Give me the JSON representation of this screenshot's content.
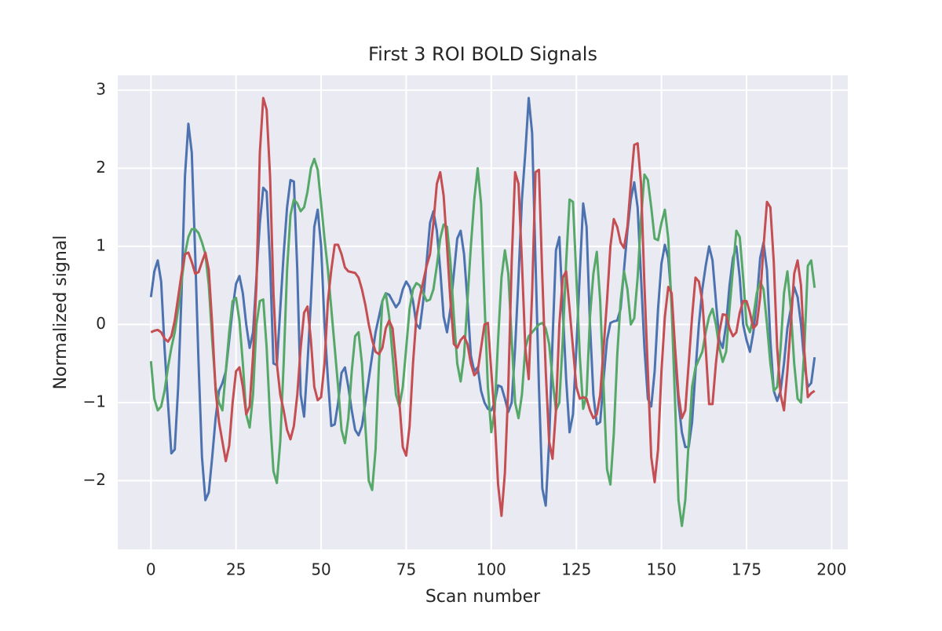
{
  "chart_data": {
    "type": "line",
    "title": "First 3 ROI BOLD Signals",
    "x_label": "Scan number",
    "y_label": "Normalized signal",
    "x": [
      0,
      1,
      2,
      3,
      4,
      5,
      6,
      7,
      8,
      9,
      10,
      11,
      12,
      13,
      14,
      15,
      16,
      17,
      18,
      19,
      20,
      21,
      22,
      23,
      24,
      25,
      26,
      27,
      28,
      29,
      30,
      31,
      32,
      33,
      34,
      35,
      36,
      37,
      38,
      39,
      40,
      41,
      42,
      43,
      44,
      45,
      46,
      47,
      48,
      49,
      50,
      51,
      52,
      53,
      54,
      55,
      56,
      57,
      58,
      59,
      60,
      61,
      62,
      63,
      64,
      65,
      66,
      67,
      68,
      69,
      70,
      71,
      72,
      73,
      74,
      75,
      76,
      77,
      78,
      79,
      80,
      81,
      82,
      83,
      84,
      85,
      86,
      87,
      88,
      89,
      90,
      91,
      92,
      93,
      94,
      95,
      96,
      97,
      98,
      99,
      100,
      101,
      102,
      103,
      104,
      105,
      106,
      107,
      108,
      109,
      110,
      111,
      112,
      113,
      114,
      115,
      116,
      117,
      118,
      119,
      120,
      121,
      122,
      123,
      124,
      125,
      126,
      127,
      128,
      129,
      130,
      131,
      132,
      133,
      134,
      135,
      136,
      137,
      138,
      139,
      140,
      141,
      142,
      143,
      144,
      145,
      146,
      147,
      148,
      149,
      150,
      151,
      152,
      153,
      154,
      155,
      156,
      157,
      158,
      159,
      160,
      161,
      162,
      163,
      164,
      165,
      166,
      167,
      168,
      169,
      170,
      171,
      172,
      173,
      174,
      175,
      176,
      177,
      178,
      179,
      180,
      181,
      182,
      183,
      184,
      185,
      186,
      187,
      188,
      189,
      190,
      191,
      192,
      193,
      194,
      195
    ],
    "series": [
      {
        "color": "#4c72b0",
        "values": [
          0.35,
          0.68,
          0.82,
          0.55,
          -0.3,
          -1.0,
          -1.65,
          -1.6,
          -0.8,
          0.4,
          1.9,
          2.57,
          2.2,
          0.9,
          -0.5,
          -1.7,
          -2.25,
          -2.15,
          -1.7,
          -1.2,
          -0.85,
          -0.75,
          -0.6,
          -0.2,
          0.2,
          0.52,
          0.62,
          0.4,
          0.0,
          -0.3,
          -0.1,
          0.6,
          1.3,
          1.75,
          1.7,
          0.8,
          -0.5,
          -0.52,
          0.2,
          0.9,
          1.5,
          1.85,
          1.83,
          0.7,
          -0.9,
          -1.18,
          -0.5,
          0.3,
          1.25,
          1.47,
          1.0,
          0.0,
          -0.7,
          -1.3,
          -1.28,
          -1.0,
          -0.62,
          -0.55,
          -0.8,
          -1.1,
          -1.35,
          -1.42,
          -1.3,
          -1.0,
          -0.7,
          -0.4,
          -0.1,
          0.1,
          0.3,
          0.4,
          0.38,
          0.3,
          0.22,
          0.28,
          0.45,
          0.55,
          0.48,
          0.3,
          0.0,
          -0.05,
          0.3,
          0.8,
          1.3,
          1.45,
          1.2,
          0.7,
          0.1,
          -0.1,
          0.2,
          0.65,
          1.1,
          1.2,
          0.9,
          0.3,
          -0.4,
          -0.6,
          -0.55,
          -0.85,
          -1.0,
          -1.08,
          -1.1,
          -1.0,
          -0.78,
          -0.8,
          -0.95,
          -1.12,
          -1.0,
          -0.3,
          0.6,
          1.6,
          2.2,
          2.9,
          2.45,
          0.8,
          -0.8,
          -2.1,
          -2.32,
          -1.5,
          -0.2,
          0.95,
          1.12,
          0.2,
          -0.7,
          -1.38,
          -1.15,
          -0.3,
          0.65,
          1.55,
          1.25,
          0.0,
          -0.9,
          -1.28,
          -1.25,
          -0.7,
          -0.2,
          0.02,
          0.04,
          0.05,
          0.2,
          0.7,
          1.2,
          1.6,
          1.82,
          1.5,
          0.6,
          -0.3,
          -0.95,
          -1.05,
          -0.6,
          0.2,
          0.78,
          1.02,
          0.85,
          0.3,
          -0.4,
          -1.0,
          -1.38,
          -1.57,
          -1.57,
          -1.25,
          -0.6,
          0.0,
          0.45,
          0.75,
          1.0,
          0.82,
          0.3,
          -0.2,
          -0.3,
          0.0,
          0.5,
          0.85,
          1.0,
          0.6,
          0.0,
          -0.2,
          -0.35,
          -0.1,
          0.3,
          0.85,
          1.05,
          0.7,
          -0.2,
          -0.85,
          -0.98,
          -0.85,
          -0.5,
          -0.05,
          0.2,
          0.48,
          0.35,
          0.0,
          -0.5,
          -0.8,
          -0.75,
          -0.42
        ]
      },
      {
        "color": "#55a868",
        "values": [
          -0.47,
          -0.95,
          -1.1,
          -1.05,
          -0.85,
          -0.55,
          -0.3,
          -0.1,
          0.2,
          0.55,
          0.9,
          1.12,
          1.22,
          1.22,
          1.17,
          1.05,
          0.9,
          0.5,
          -0.2,
          -0.8,
          -1.0,
          -1.1,
          -0.6,
          -0.1,
          0.3,
          0.34,
          0.05,
          -0.5,
          -1.15,
          -1.32,
          -0.9,
          0.0,
          0.3,
          0.32,
          -0.3,
          -1.2,
          -1.88,
          -2.03,
          -1.5,
          -0.5,
          0.7,
          1.4,
          1.6,
          1.55,
          1.45,
          1.5,
          1.7,
          2.0,
          2.12,
          1.98,
          1.55,
          1.1,
          0.7,
          0.2,
          -0.3,
          -0.8,
          -1.35,
          -1.52,
          -1.2,
          -0.6,
          -0.15,
          -0.1,
          -0.5,
          -1.3,
          -2.0,
          -2.12,
          -1.6,
          -0.5,
          0.3,
          0.4,
          0.1,
          -0.4,
          -0.9,
          -1.05,
          -0.8,
          -0.3,
          0.2,
          0.45,
          0.53,
          0.5,
          0.4,
          0.3,
          0.32,
          0.45,
          0.75,
          1.1,
          1.28,
          1.25,
          0.8,
          0.1,
          -0.5,
          -0.73,
          -0.4,
          0.3,
          1.0,
          1.6,
          2.0,
          1.55,
          0.3,
          -0.8,
          -1.38,
          -1.1,
          -0.2,
          0.6,
          0.95,
          0.65,
          -0.2,
          -1.0,
          -1.2,
          -0.9,
          -0.3,
          -0.15,
          -0.1,
          -0.05,
          0.0,
          0.02,
          -0.05,
          -0.25,
          -0.7,
          -1.1,
          -1.0,
          -0.2,
          0.8,
          1.6,
          1.57,
          0.6,
          -0.4,
          -1.08,
          -0.9,
          0.1,
          0.65,
          0.93,
          0.3,
          -0.8,
          -1.85,
          -2.05,
          -1.4,
          -0.4,
          0.3,
          0.68,
          0.45,
          0.0,
          0.08,
          0.6,
          1.35,
          1.92,
          1.85,
          1.5,
          1.1,
          1.08,
          1.3,
          1.47,
          1.1,
          0.2,
          -1.0,
          -2.25,
          -2.58,
          -2.25,
          -1.5,
          -0.8,
          -0.55,
          -0.45,
          -0.35,
          -0.1,
          0.1,
          0.2,
          0.0,
          -0.3,
          -0.48,
          -0.35,
          0.2,
          0.7,
          1.2,
          1.12,
          0.6,
          0.0,
          -0.1,
          0.1,
          0.4,
          0.55,
          0.45,
          0.0,
          -0.5,
          -0.85,
          -0.8,
          -0.3,
          0.4,
          0.68,
          0.2,
          -0.5,
          -0.95,
          -1.0,
          -0.3,
          0.75,
          0.82,
          0.47
        ]
      },
      {
        "color": "#c44e52",
        "values": [
          -0.1,
          -0.08,
          -0.07,
          -0.1,
          -0.18,
          -0.22,
          -0.15,
          0.05,
          0.35,
          0.65,
          0.9,
          0.92,
          0.8,
          0.65,
          0.67,
          0.8,
          0.92,
          0.7,
          0.0,
          -0.85,
          -1.25,
          -1.5,
          -1.75,
          -1.55,
          -1.0,
          -0.6,
          -0.55,
          -0.8,
          -1.15,
          -1.05,
          -0.4,
          0.5,
          2.2,
          2.9,
          2.75,
          1.9,
          0.4,
          -0.5,
          -0.9,
          -1.1,
          -1.35,
          -1.47,
          -1.3,
          -0.9,
          -0.3,
          0.15,
          0.23,
          -0.2,
          -0.8,
          -0.97,
          -0.93,
          -0.5,
          0.3,
          0.7,
          1.02,
          1.02,
          0.9,
          0.73,
          0.68,
          0.67,
          0.66,
          0.6,
          0.45,
          0.25,
          0.0,
          -0.2,
          -0.35,
          -0.38,
          -0.3,
          -0.05,
          0.05,
          -0.05,
          -0.5,
          -1.0,
          -1.57,
          -1.68,
          -1.3,
          -0.5,
          0.1,
          0.35,
          0.55,
          0.75,
          0.9,
          1.3,
          1.8,
          1.95,
          1.65,
          1.0,
          0.3,
          -0.25,
          -0.3,
          -0.2,
          -0.15,
          -0.25,
          -0.5,
          -0.65,
          -0.6,
          -0.3,
          0.0,
          0.02,
          -0.6,
          -1.2,
          -2.05,
          -2.45,
          -1.9,
          -0.8,
          0.8,
          1.95,
          1.8,
          0.8,
          -0.3,
          -0.7,
          0.4,
          1.95,
          1.98,
          0.6,
          -0.6,
          -1.5,
          -1.72,
          -1.1,
          0.0,
          0.6,
          0.68,
          0.2,
          -0.3,
          -0.8,
          -0.95,
          -0.93,
          -0.95,
          -1.1,
          -1.2,
          -1.15,
          -0.9,
          -0.3,
          0.3,
          1.0,
          1.35,
          1.25,
          1.05,
          0.98,
          1.25,
          1.8,
          2.3,
          2.32,
          1.8,
          0.5,
          -0.6,
          -1.7,
          -2.02,
          -1.6,
          -0.6,
          0.1,
          0.48,
          0.4,
          -0.3,
          -0.9,
          -1.2,
          -1.1,
          -0.5,
          0.1,
          0.6,
          0.55,
          0.3,
          -0.3,
          -1.02,
          -1.02,
          -0.5,
          -0.1,
          0.13,
          0.12,
          -0.05,
          -0.15,
          -0.1,
          0.15,
          0.3,
          0.3,
          0.15,
          -0.05,
          0.0,
          0.35,
          1.0,
          1.57,
          1.5,
          0.8,
          -0.3,
          -0.9,
          -1.1,
          -0.6,
          0.0,
          0.65,
          0.82,
          0.5,
          -0.35,
          -0.93,
          -0.88,
          -0.85
        ]
      }
    ],
    "xlim": [
      -9.75,
      204.75
    ],
    "ylim": [
      -2.88,
      3.19
    ],
    "xticks": [
      0,
      25,
      50,
      75,
      100,
      125,
      150,
      175,
      200
    ],
    "yticks": [
      {
        "value": -2,
        "label": "−2"
      },
      {
        "value": -1,
        "label": "−1"
      },
      0,
      1,
      2,
      3
    ],
    "grid": true,
    "background": "#eaeaf2"
  }
}
